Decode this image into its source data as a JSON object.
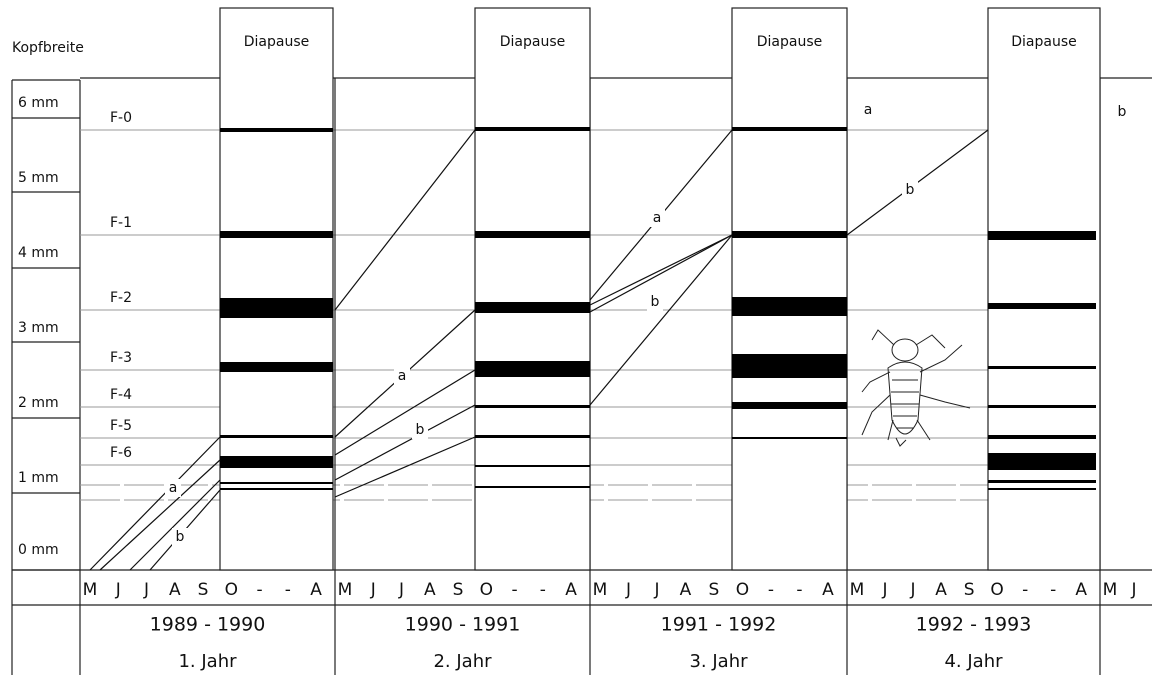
{
  "axis_label": "Kopfbreite",
  "y_labels": [
    "6 mm",
    "5 mm",
    "4 mm",
    "3 mm",
    "2 mm",
    "1 mm",
    "0 mm"
  ],
  "stages": [
    "F-0",
    "F-1",
    "F-2",
    "F-3",
    "F-4",
    "F-5",
    "F-6"
  ],
  "diapause": [
    "Diapause",
    "Diapause",
    "Diapause",
    "Diapause"
  ],
  "segments": [
    {
      "months": [
        "M",
        "J",
        "J",
        "A",
        "S",
        "O",
        "-",
        "-",
        "A"
      ],
      "years": "1989 - 1990",
      "label": "1. Jahr"
    },
    {
      "months": [
        "M",
        "J",
        "J",
        "A",
        "S",
        "O",
        "-",
        "-",
        "A"
      ],
      "years": "1990 - 1991",
      "label": "2. Jahr"
    },
    {
      "months": [
        "M",
        "J",
        "J",
        "A",
        "S",
        "O",
        "-",
        "-",
        "A"
      ],
      "years": "1991 - 1992",
      "label": "3. Jahr"
    },
    {
      "months": [
        "M",
        "J",
        "J",
        "A",
        "S",
        "O",
        "-",
        "-",
        "A"
      ],
      "years": "1992 - 1993",
      "label": "4. Jahr"
    },
    {
      "months": [
        "M",
        "J"
      ]
    }
  ],
  "trend_labels": [
    "a",
    "b",
    "a",
    "b",
    "a",
    "b",
    "a",
    "b",
    "b"
  ]
}
